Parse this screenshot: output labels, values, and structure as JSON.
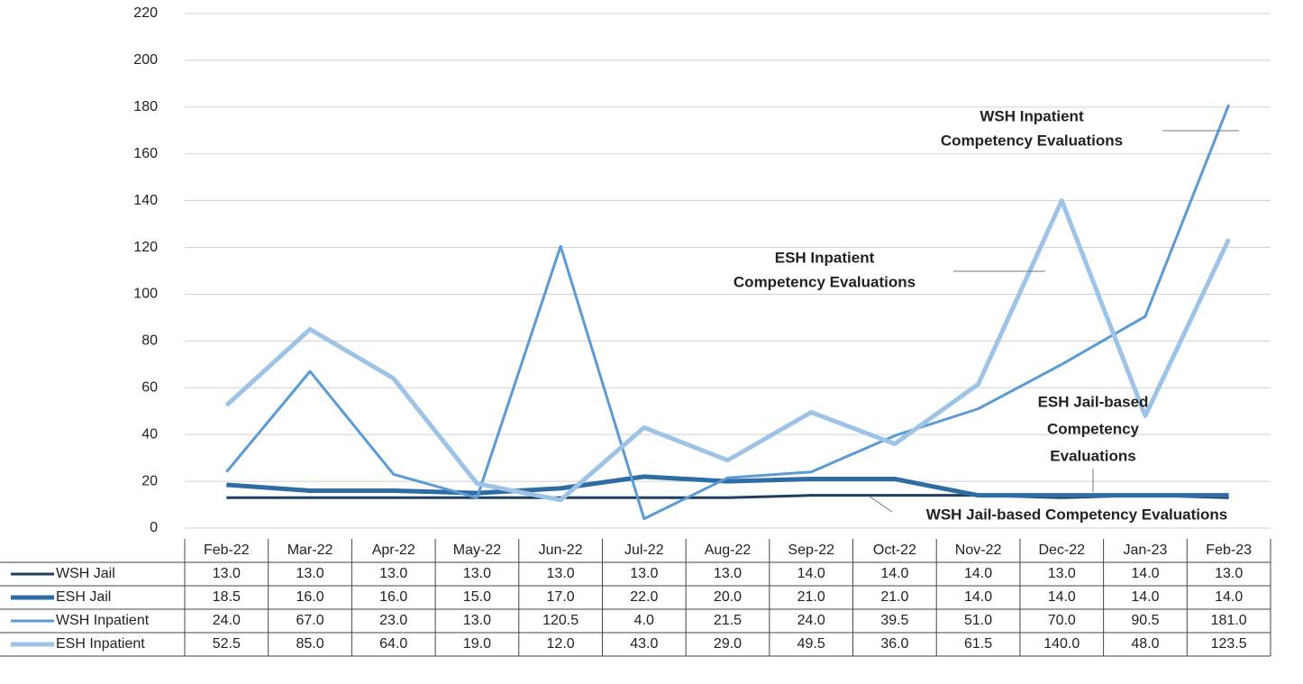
{
  "chart_data": {
    "type": "line",
    "categories": [
      "Feb-22",
      "Mar-22",
      "Apr-22",
      "May-22",
      "Jun-22",
      "Jul-22",
      "Aug-22",
      "Sep-22",
      "Oct-22",
      "Nov-22",
      "Dec-22",
      "Jan-23",
      "Feb-23"
    ],
    "series": [
      {
        "name": "WSH Jail",
        "color": "#1f3f5f",
        "values": [
          13,
          13,
          13,
          13,
          13,
          13,
          13,
          14,
          14,
          14,
          13,
          14,
          13
        ],
        "value_labels": [
          "13.0",
          "13.0",
          "13.0",
          "13.0",
          "13.0",
          "13.0",
          "13.0",
          "14.0",
          "14.0",
          "14.0",
          "13.0",
          "14.0",
          "13.0"
        ]
      },
      {
        "name": "ESH Jail",
        "color": "#2e6ca4",
        "values": [
          18.5,
          16,
          16,
          15,
          17,
          22,
          20,
          21,
          21,
          14,
          14,
          14,
          14
        ],
        "value_labels": [
          "18.5",
          "16.0",
          "16.0",
          "15.0",
          "17.0",
          "22.0",
          "20.0",
          "21.0",
          "21.0",
          "14.0",
          "14.0",
          "14.0",
          "14.0"
        ]
      },
      {
        "name": "WSH Inpatient",
        "color": "#5b9bd5",
        "values": [
          24,
          67,
          23,
          13,
          120.5,
          4,
          21.5,
          24,
          39.5,
          51,
          70,
          90.5,
          181
        ],
        "value_labels": [
          "24.0",
          "67.0",
          "23.0",
          "13.0",
          "120.5",
          "4.0",
          "21.5",
          "24.0",
          "39.5",
          "51.0",
          "70.0",
          "90.5",
          "181.0"
        ]
      },
      {
        "name": "ESH Inpatient",
        "color": "#9dc3e6",
        "values": [
          52.5,
          85,
          64,
          19,
          12,
          43,
          29,
          49.5,
          36,
          61.5,
          140,
          48,
          123.5
        ],
        "value_labels": [
          "52.5",
          "85.0",
          "64.0",
          "19.0",
          "12.0",
          "43.0",
          "29.0",
          "49.5",
          "36.0",
          "61.5",
          "140.0",
          "48.0",
          "123.5"
        ]
      }
    ],
    "ylim": [
      0,
      220
    ],
    "yticks": [
      0,
      20,
      40,
      60,
      80,
      100,
      120,
      140,
      160,
      180,
      200,
      220
    ],
    "grid": true,
    "annotations": [
      {
        "lines": [
          "WSH Inpatient",
          "Competency Evaluations"
        ],
        "color": "#5b9bd5"
      },
      {
        "lines": [
          "ESH Inpatient",
          "Competency Evaluations"
        ],
        "color": "#5b9bd5"
      },
      {
        "lines": [
          "ESH Jail-based",
          "Competency",
          "Evaluations"
        ],
        "color": "#2e6ca4"
      },
      {
        "lines": [
          "WSH Jail-based Competency Evaluations"
        ],
        "color": "#1f3f5f"
      }
    ]
  }
}
